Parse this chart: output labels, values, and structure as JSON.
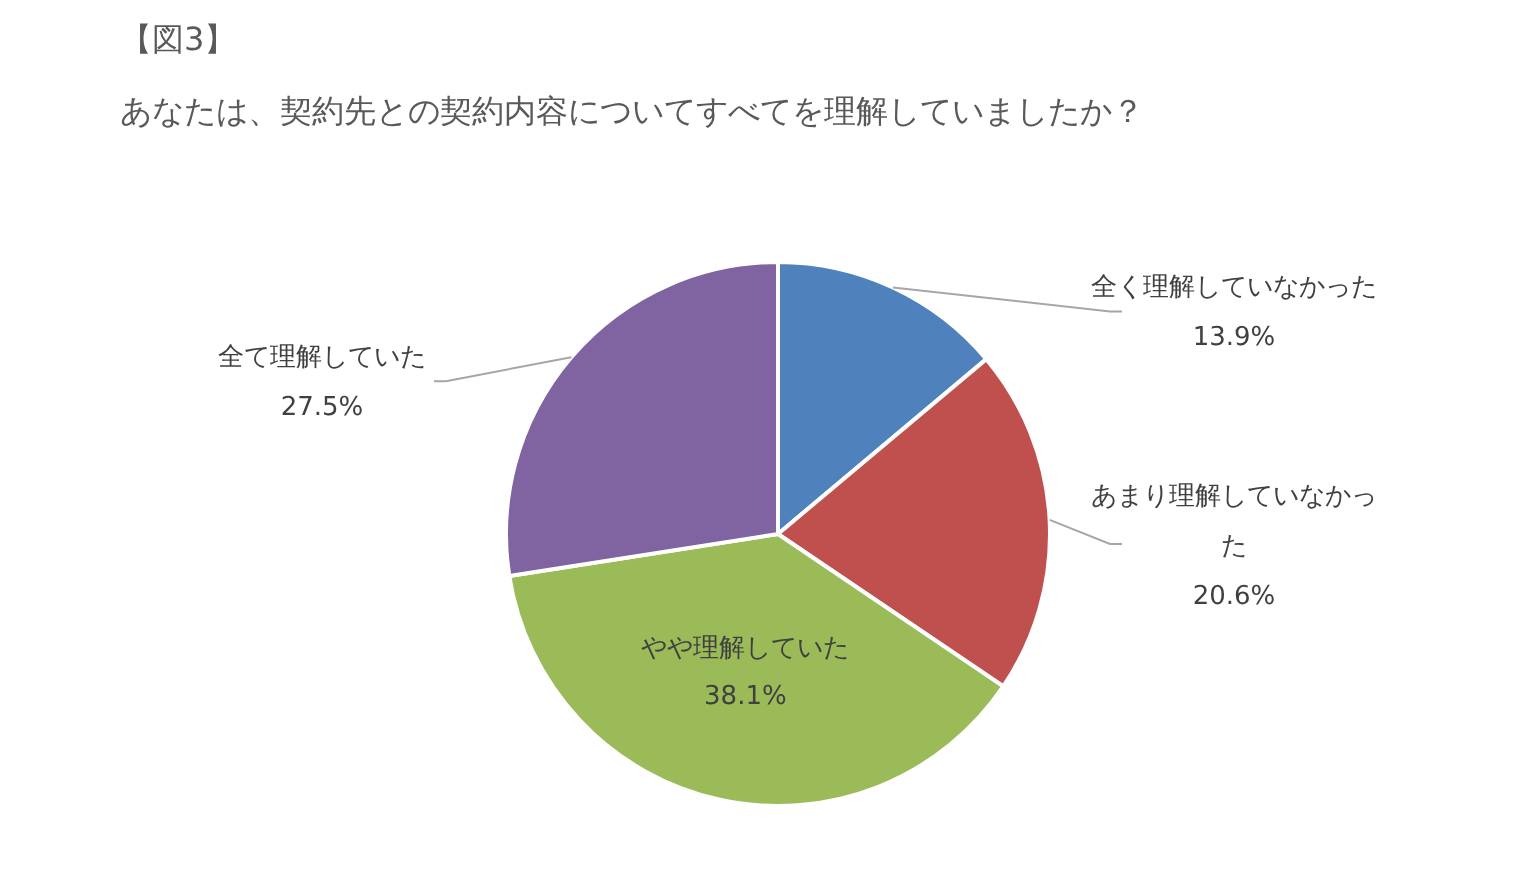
{
  "chart_data": {
    "type": "pie",
    "title": "【図3】",
    "subtitle": "あなたは、契約先との契約内容についてすべてを理解していましたか？",
    "categories": [
      "全く理解していなかった",
      "あまり理解していなかった",
      "やや理解していた",
      "全て理解していた"
    ],
    "values": [
      13.9,
      20.6,
      38.1,
      27.5
    ],
    "value_labels": [
      "13.9%",
      "20.6%",
      "38.1%",
      "27.5%"
    ],
    "colors": [
      "#4f81bd",
      "#c0504d",
      "#9bbb59",
      "#8064a2"
    ],
    "legend": false
  }
}
